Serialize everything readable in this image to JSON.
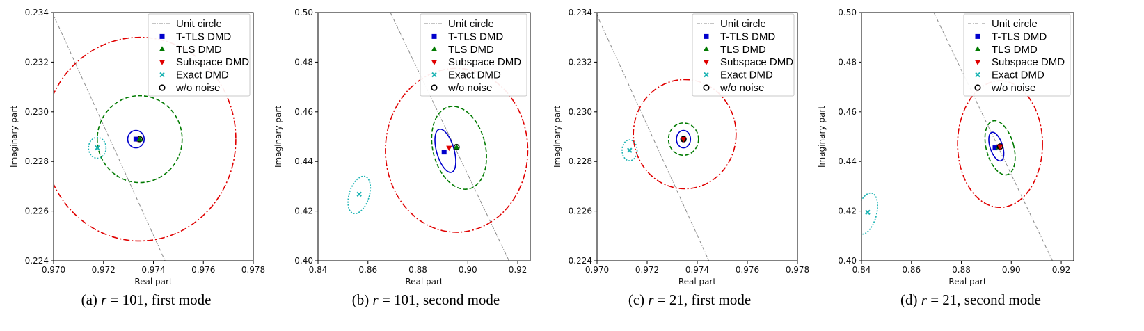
{
  "figure": {
    "legend_entries": [
      {
        "key": "unit",
        "label": "Unit circle",
        "color": "#8a8a8a",
        "marker": "line-dashed"
      },
      {
        "key": "ttls",
        "label": "T-TLS DMD",
        "color": "#0000cc",
        "marker": "square"
      },
      {
        "key": "tls",
        "label": "TLS DMD",
        "color": "#007a00",
        "marker": "triangle-up"
      },
      {
        "key": "sub",
        "label": "Subspace DMD",
        "color": "#e00000",
        "marker": "triangle-down"
      },
      {
        "key": "exact",
        "label": "Exact DMD",
        "color": "#1ab3b3",
        "marker": "x"
      },
      {
        "key": "clean",
        "label": "w/o noise",
        "color": "#000000",
        "marker": "circle-open"
      }
    ]
  },
  "chart_data": [
    {
      "type": "scatter",
      "caption": {
        "pre": "(a) ",
        "var": "r",
        "post": " = 101, first mode"
      },
      "xlabel": "Real part",
      "ylabel": "Imaginary part",
      "xlim": [
        0.97,
        0.978
      ],
      "ylim": [
        0.224,
        0.234
      ],
      "xticks": [
        "0.970",
        "0.972",
        "0.974",
        "0.976",
        "0.978"
      ],
      "yticks": [
        "0.224",
        "0.226",
        "0.228",
        "0.230",
        "0.232",
        "0.234"
      ],
      "unit_circle": [
        [
          0.9695,
          0.235
        ],
        [
          0.9746,
          0.2237
        ]
      ],
      "ellipses": [
        {
          "key": "sub",
          "cx": 0.97345,
          "cy": 0.2289,
          "rx": 0.00385,
          "ry": 0.0041,
          "angle": 0
        },
        {
          "key": "tls",
          "cx": 0.97345,
          "cy": 0.2289,
          "rx": 0.0017,
          "ry": 0.00175,
          "angle": 0
        },
        {
          "key": "ttls",
          "cx": 0.9733,
          "cy": 0.2289,
          "rx": 0.00033,
          "ry": 0.00035,
          "angle": 0
        },
        {
          "key": "exact",
          "cx": 0.97175,
          "cy": 0.22855,
          "rx": 0.00035,
          "ry": 0.00042,
          "angle": 0
        }
      ],
      "points": [
        {
          "key": "exact",
          "x": 0.97175,
          "y": 0.22855
        },
        {
          "key": "clean",
          "x": 0.97345,
          "y": 0.2289
        },
        {
          "key": "sub",
          "x": 0.97335,
          "y": 0.2289
        },
        {
          "key": "ttls",
          "x": 0.9733,
          "y": 0.2289
        },
        {
          "key": "tls",
          "x": 0.97345,
          "y": 0.2289
        }
      ]
    },
    {
      "type": "scatter",
      "caption": {
        "pre": "(b) ",
        "var": "r",
        "post": " = 101, second mode"
      },
      "xlabel": "Real part",
      "ylabel": "Imaginary part",
      "xlim": [
        0.84,
        0.925
      ],
      "ylim": [
        0.4,
        0.5
      ],
      "xticks": [
        "0.84",
        "0.86",
        "0.88",
        "0.90",
        "0.92"
      ],
      "yticks": [
        "0.40",
        "0.42",
        "0.44",
        "0.46",
        "0.48",
        "0.50"
      ],
      "unit_circle": [
        [
          0.869,
          0.5
        ],
        [
          0.9165,
          0.4
        ]
      ],
      "ellipses": [
        {
          "key": "sub",
          "cx": 0.8955,
          "cy": 0.4445,
          "rx": 0.0285,
          "ry": 0.033,
          "angle": 0
        },
        {
          "key": "tls",
          "cx": 0.8965,
          "cy": 0.4455,
          "rx": 0.0105,
          "ry": 0.017,
          "angle": -14
        },
        {
          "key": "ttls",
          "cx": 0.891,
          "cy": 0.4443,
          "rx": 0.0035,
          "ry": 0.009,
          "angle": -16
        },
        {
          "key": "exact",
          "cx": 0.8565,
          "cy": 0.4265,
          "rx": 0.004,
          "ry": 0.0078,
          "angle": 18
        }
      ],
      "points": [
        {
          "key": "exact",
          "x": 0.8565,
          "y": 0.4268
        },
        {
          "key": "ttls",
          "x": 0.8905,
          "y": 0.4438
        },
        {
          "key": "sub",
          "x": 0.8925,
          "y": 0.4455
        },
        {
          "key": "clean",
          "x": 0.8955,
          "y": 0.4458
        },
        {
          "key": "tls",
          "x": 0.8955,
          "y": 0.4458
        }
      ]
    },
    {
      "type": "scatter",
      "caption": {
        "pre": "(c) ",
        "var": "r",
        "post": " = 21, first mode"
      },
      "xlabel": "Real part",
      "ylabel": "Imaginary part",
      "xlim": [
        0.97,
        0.978
      ],
      "ylim": [
        0.224,
        0.234
      ],
      "xticks": [
        "0.970",
        "0.972",
        "0.974",
        "0.976",
        "0.978"
      ],
      "yticks": [
        "0.224",
        "0.226",
        "0.228",
        "0.230",
        "0.232",
        "0.234"
      ],
      "unit_circle": [
        [
          0.9695,
          0.235
        ],
        [
          0.9746,
          0.2237
        ]
      ],
      "ellipses": [
        {
          "key": "sub",
          "cx": 0.9735,
          "cy": 0.2291,
          "rx": 0.00205,
          "ry": 0.0022,
          "angle": 0
        },
        {
          "key": "tls",
          "cx": 0.97345,
          "cy": 0.2289,
          "rx": 0.0006,
          "ry": 0.00065,
          "angle": 0
        },
        {
          "key": "ttls",
          "cx": 0.97345,
          "cy": 0.2289,
          "rx": 0.00028,
          "ry": 0.00035,
          "angle": 0
        },
        {
          "key": "exact",
          "cx": 0.9713,
          "cy": 0.22845,
          "rx": 0.0003,
          "ry": 0.00042,
          "angle": 0
        }
      ],
      "points": [
        {
          "key": "exact",
          "x": 0.9713,
          "y": 0.22845
        },
        {
          "key": "ttls",
          "x": 0.97345,
          "y": 0.2289
        },
        {
          "key": "tls",
          "x": 0.97345,
          "y": 0.2289
        },
        {
          "key": "clean",
          "x": 0.97345,
          "y": 0.2289
        },
        {
          "key": "sub",
          "x": 0.97345,
          "y": 0.2289
        }
      ]
    },
    {
      "type": "scatter",
      "caption": {
        "pre": "(d) ",
        "var": "r",
        "post": " = 21, second mode"
      },
      "xlabel": "Real part",
      "ylabel": "Imaginary part",
      "xlim": [
        0.84,
        0.925
      ],
      "ylim": [
        0.4,
        0.5
      ],
      "xticks": [
        "0.84",
        "0.86",
        "0.88",
        "0.90",
        "0.92"
      ],
      "yticks": [
        "0.40",
        "0.42",
        "0.44",
        "0.46",
        "0.48",
        "0.50"
      ],
      "unit_circle": [
        [
          0.869,
          0.5
        ],
        [
          0.9165,
          0.4
        ]
      ],
      "ellipses": [
        {
          "key": "sub",
          "cx": 0.8955,
          "cy": 0.447,
          "rx": 0.017,
          "ry": 0.0255,
          "angle": 0
        },
        {
          "key": "tls",
          "cx": 0.8955,
          "cy": 0.4455,
          "rx": 0.0055,
          "ry": 0.0112,
          "angle": -15
        },
        {
          "key": "ttls",
          "cx": 0.894,
          "cy": 0.446,
          "rx": 0.0025,
          "ry": 0.006,
          "angle": -18
        },
        {
          "key": "exact",
          "cx": 0.842,
          "cy": 0.419,
          "rx": 0.004,
          "ry": 0.0085,
          "angle": 15
        }
      ],
      "points": [
        {
          "key": "exact",
          "x": 0.8425,
          "y": 0.4195
        },
        {
          "key": "ttls",
          "x": 0.8935,
          "y": 0.4455
        },
        {
          "key": "tls",
          "x": 0.895,
          "y": 0.4458
        },
        {
          "key": "clean",
          "x": 0.8955,
          "y": 0.446
        },
        {
          "key": "sub",
          "x": 0.8955,
          "y": 0.446
        }
      ]
    }
  ]
}
